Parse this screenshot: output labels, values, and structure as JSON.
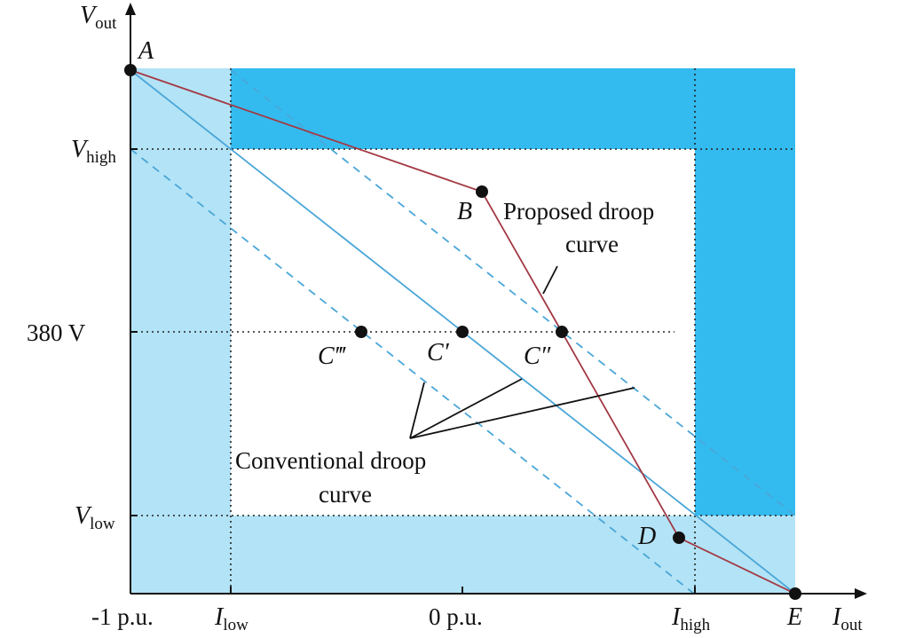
{
  "colors": {
    "light_region": "#b3e3f6",
    "dark_region": "#33bbef",
    "proposed_curve": "#a33a45",
    "conventional_curve": "#4aa6d8",
    "axis": "#111111"
  },
  "axes": {
    "y_label": "V",
    "y_label_sub": "out",
    "x_label": "I",
    "x_label_sub": "out"
  },
  "y_ticks": {
    "v_high": "V",
    "v_high_sub": "high",
    "v_nom": "380 V",
    "v_low": "V",
    "v_low_sub": "low"
  },
  "x_ticks": {
    "minus_one": "-1 p.u.",
    "i_low": "I",
    "i_low_sub": "low",
    "zero": "0 p.u.",
    "i_high": "I",
    "i_high_sub": "high"
  },
  "points": {
    "A": "A",
    "B": "B",
    "C_prime": "C′",
    "C_double_prime": "C″",
    "C_triple_prime": "C‴",
    "D": "D",
    "E": "E"
  },
  "annotations": {
    "proposed_line1": "Proposed droop",
    "proposed_line2": "curve",
    "conventional_line1": "Conventional droop",
    "conventional_line2": "curve"
  }
}
